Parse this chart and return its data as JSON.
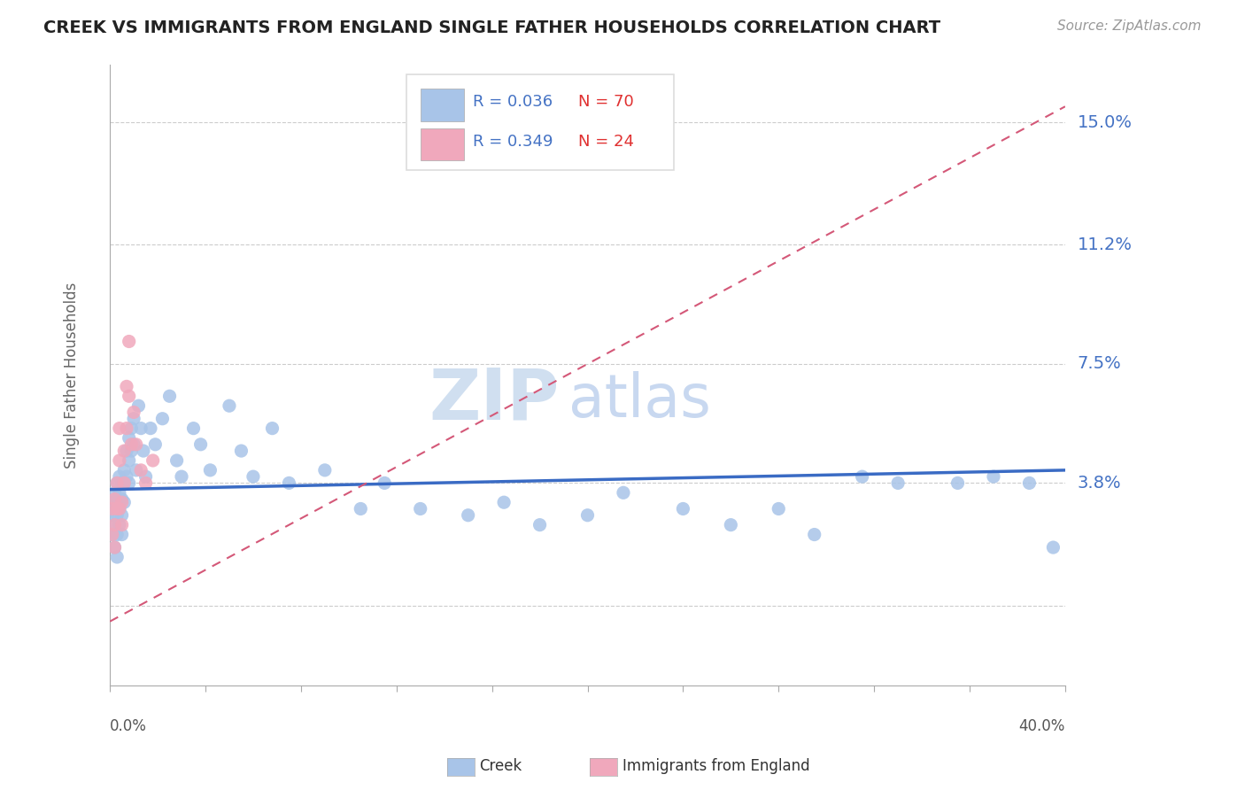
{
  "title": "CREEK VS IMMIGRANTS FROM ENGLAND SINGLE FATHER HOUSEHOLDS CORRELATION CHART",
  "source": "Source: ZipAtlas.com",
  "ylabel": "Single Father Households",
  "yticks": [
    0.0,
    0.038,
    0.075,
    0.112,
    0.15
  ],
  "ytick_labels": [
    "",
    "3.8%",
    "7.5%",
    "11.2%",
    "15.0%"
  ],
  "xmin": 0.0,
  "xmax": 0.4,
  "ymin": -0.025,
  "ymax": 0.168,
  "creek_color": "#a8c4e8",
  "england_color": "#f0a8bc",
  "creek_line_color": "#3a6bc4",
  "england_line_color": "#d45878",
  "watermark_zip": "ZIP",
  "watermark_atlas": "atlas",
  "watermark_color_zip": "#c8d8f0",
  "watermark_color_atlas": "#c8d8f0",
  "legend_R_color": "#4472c4",
  "legend_N_color": "#e03030",
  "creek_x": [
    0.001,
    0.001,
    0.001,
    0.002,
    0.002,
    0.002,
    0.002,
    0.003,
    0.003,
    0.003,
    0.003,
    0.003,
    0.004,
    0.004,
    0.004,
    0.004,
    0.005,
    0.005,
    0.005,
    0.005,
    0.006,
    0.006,
    0.006,
    0.007,
    0.007,
    0.008,
    0.008,
    0.008,
    0.009,
    0.009,
    0.01,
    0.01,
    0.011,
    0.012,
    0.013,
    0.014,
    0.015,
    0.017,
    0.019,
    0.022,
    0.025,
    0.028,
    0.03,
    0.035,
    0.038,
    0.042,
    0.05,
    0.055,
    0.06,
    0.068,
    0.075,
    0.09,
    0.105,
    0.115,
    0.13,
    0.15,
    0.165,
    0.18,
    0.2,
    0.215,
    0.24,
    0.26,
    0.28,
    0.295,
    0.315,
    0.33,
    0.355,
    0.37,
    0.385,
    0.395
  ],
  "creek_y": [
    0.032,
    0.028,
    0.022,
    0.035,
    0.03,
    0.025,
    0.018,
    0.038,
    0.033,
    0.028,
    0.022,
    0.015,
    0.04,
    0.035,
    0.03,
    0.025,
    0.038,
    0.033,
    0.028,
    0.022,
    0.042,
    0.038,
    0.032,
    0.048,
    0.04,
    0.052,
    0.045,
    0.038,
    0.055,
    0.048,
    0.058,
    0.05,
    0.042,
    0.062,
    0.055,
    0.048,
    0.04,
    0.055,
    0.05,
    0.058,
    0.065,
    0.045,
    0.04,
    0.055,
    0.05,
    0.042,
    0.062,
    0.048,
    0.04,
    0.055,
    0.038,
    0.042,
    0.03,
    0.038,
    0.03,
    0.028,
    0.032,
    0.025,
    0.028,
    0.035,
    0.03,
    0.025,
    0.03,
    0.022,
    0.04,
    0.038,
    0.038,
    0.04,
    0.038,
    0.018
  ],
  "england_x": [
    0.001,
    0.001,
    0.002,
    0.002,
    0.002,
    0.003,
    0.003,
    0.004,
    0.004,
    0.004,
    0.005,
    0.005,
    0.006,
    0.006,
    0.007,
    0.007,
    0.008,
    0.008,
    0.009,
    0.01,
    0.011,
    0.013,
    0.015,
    0.018
  ],
  "england_y": [
    0.03,
    0.022,
    0.033,
    0.025,
    0.018,
    0.038,
    0.03,
    0.055,
    0.045,
    0.03,
    0.032,
    0.025,
    0.048,
    0.038,
    0.068,
    0.055,
    0.082,
    0.065,
    0.05,
    0.06,
    0.05,
    0.042,
    0.038,
    0.045
  ],
  "creek_trend": [
    0.0,
    0.4,
    0.036,
    0.042
  ],
  "england_trend_x0": 0.0,
  "england_trend_y0": -0.005,
  "england_trend_x1": 0.4,
  "england_trend_y1": 0.155
}
